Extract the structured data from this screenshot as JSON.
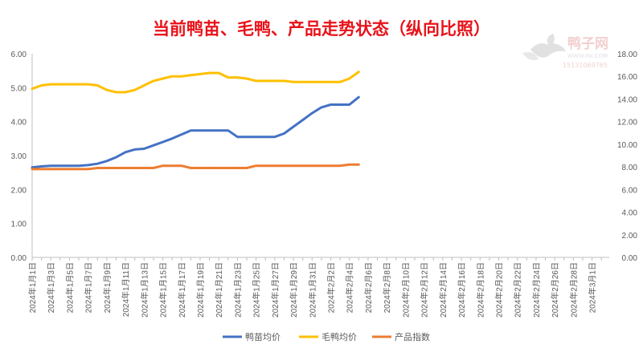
{
  "chart_data": {
    "type": "line",
    "title": "当前鸭苗、毛鸭、产品走势状态（纵向比照）",
    "colors": {
      "title": "#e8121a",
      "duckling": "#4472c4",
      "meatduck": "#ffc000",
      "index": "#ed7d31",
      "axis": "#bfbfbf",
      "tick": "#595959"
    },
    "left_axis": {
      "range": [
        0,
        6
      ],
      "ticks": [
        "0.00",
        "1.00",
        "2.00",
        "3.00",
        "4.00",
        "5.00",
        "6.00"
      ]
    },
    "right_axis": {
      "range": [
        0,
        18
      ],
      "ticks": [
        "0.00",
        "2.00",
        "4.00",
        "6.00",
        "8.00",
        "10.00",
        "12.00",
        "14.00",
        "16.00",
        "18.00"
      ]
    },
    "x_tick_labels": [
      "2024年1月1日",
      "2024年1月3日",
      "2024年1月5日",
      "2024年1月7日",
      "2024年1月9日",
      "2024年1月11日",
      "2024年1月13日",
      "2024年1月15日",
      "2024年1月17日",
      "2024年1月19日",
      "2024年1月21日",
      "2024年1月23日",
      "2024年1月25日",
      "2024年1月27日",
      "2024年1月29日",
      "2024年1月31日",
      "2024年2月2日",
      "2024年2月4日",
      "2024年2月6日",
      "2024年2月8日",
      "2024年2月10日",
      "2024年2月12日",
      "2024年2月14日",
      "2024年2月16日",
      "2024年2月18日",
      "2024年2月20日",
      "2024年2月22日",
      "2024年2月24日",
      "2024年2月26日",
      "2024年2月28日",
      "2024年3月1日"
    ],
    "x": [
      "2024年1月1日",
      "2024年1月2日",
      "2024年1月3日",
      "2024年1月4日",
      "2024年1月5日",
      "2024年1月6日",
      "2024年1月7日",
      "2024年1月8日",
      "2024年1月9日",
      "2024年1月10日",
      "2024年1月11日",
      "2024年1月12日",
      "2024年1月13日",
      "2024年1月14日",
      "2024年1月15日",
      "2024年1月16日",
      "2024年1月17日",
      "2024年1月18日",
      "2024年1月19日",
      "2024年1月20日",
      "2024年1月21日",
      "2024年1月22日",
      "2024年1月23日",
      "2024年1月24日",
      "2024年1月25日",
      "2024年1月26日",
      "2024年1月27日",
      "2024年1月28日",
      "2024年1月29日",
      "2024年1月30日",
      "2024年1月31日",
      "2024年2月1日",
      "2024年2月2日",
      "2024年2月3日",
      "2024年2月4日",
      "2024年2月5日"
    ],
    "series": [
      {
        "name": "鸭苗均价",
        "axis": "left",
        "color": "#4472c4",
        "values": [
          2.65,
          2.68,
          2.7,
          2.7,
          2.7,
          2.7,
          2.72,
          2.76,
          2.84,
          2.95,
          3.1,
          3.18,
          3.2,
          3.3,
          3.4,
          3.5,
          3.62,
          3.74,
          3.74,
          3.74,
          3.74,
          3.74,
          3.55,
          3.55,
          3.55,
          3.55,
          3.55,
          3.65,
          3.85,
          4.05,
          4.25,
          4.42,
          4.5,
          4.5,
          4.5,
          4.72
        ]
      },
      {
        "name": "毛鸭均价",
        "axis": "right",
        "color": "#ffc000",
        "values": [
          14.9,
          15.2,
          15.3,
          15.3,
          15.3,
          15.3,
          15.3,
          15.2,
          14.8,
          14.6,
          14.6,
          14.8,
          15.2,
          15.6,
          15.8,
          16.0,
          16.0,
          16.1,
          16.2,
          16.3,
          16.3,
          15.9,
          15.9,
          15.8,
          15.6,
          15.6,
          15.6,
          15.6,
          15.5,
          15.5,
          15.5,
          15.5,
          15.5,
          15.5,
          15.8,
          16.4
        ]
      },
      {
        "name": "产品指数",
        "axis": "right",
        "color": "#ed7d31",
        "values": [
          7.8,
          7.8,
          7.8,
          7.8,
          7.8,
          7.8,
          7.8,
          7.9,
          7.9,
          7.9,
          7.9,
          7.9,
          7.9,
          7.9,
          8.1,
          8.1,
          8.1,
          7.9,
          7.9,
          7.9,
          7.9,
          7.9,
          7.9,
          7.9,
          8.1,
          8.1,
          8.1,
          8.1,
          8.1,
          8.1,
          8.1,
          8.1,
          8.1,
          8.1,
          8.2,
          8.2
        ]
      }
    ],
    "legend": {
      "placement": "bottom"
    },
    "grid": false
  },
  "watermark": {
    "brand": "鸭子网",
    "url": "WWW.INI.COM",
    "phone": "15131069765",
    "icon": "duck-logo-icon"
  }
}
